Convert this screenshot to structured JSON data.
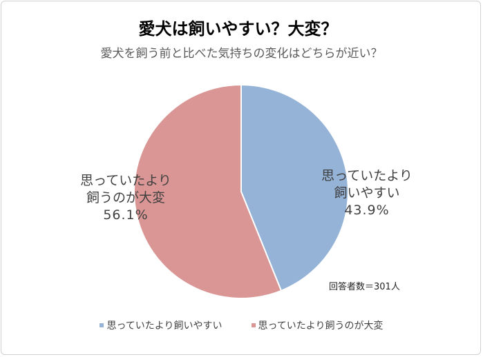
{
  "chart_data": {
    "type": "pie",
    "title": "愛犬は飼いやすい？大変？",
    "subtitle": "愛犬を飼う前と比べた気持ちの変化はどちらが近い？",
    "slices": [
      {
        "name": "思っていたより飼いやすい",
        "label_lines": [
          "思っていたより",
          "飼いやすい"
        ],
        "value": 43.9,
        "value_label": "43.9%",
        "color": "#95b3d7"
      },
      {
        "name": "思っていたより飼うのが大変",
        "label_lines": [
          "思っていたより",
          "飼うのが大変"
        ],
        "value": 56.1,
        "value_label": "56.1%",
        "color": "#d99694"
      }
    ],
    "annotation": "回答者数＝301人",
    "legend_position": "bottom"
  }
}
